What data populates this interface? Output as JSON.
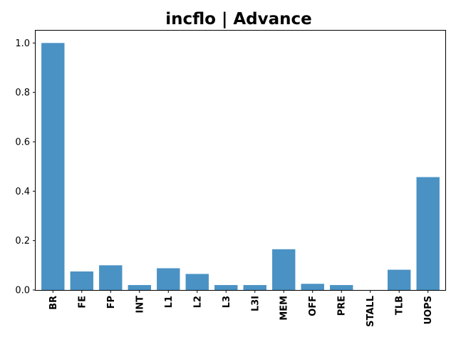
{
  "chart_data": {
    "type": "bar",
    "title": "incflo | Advance",
    "xlabel": "",
    "ylabel": "",
    "categories": [
      "BR",
      "FE",
      "FP",
      "INT",
      "L1",
      "L2",
      "L3",
      "L3I",
      "MEM",
      "OFF",
      "PRE",
      "STALL",
      "TLB",
      "UOPS"
    ],
    "values": [
      1.0,
      0.075,
      0.1,
      0.02,
      0.088,
      0.065,
      0.02,
      0.02,
      0.165,
      0.025,
      0.02,
      0.0,
      0.082,
      0.457
    ],
    "ylim": [
      0,
      1.05
    ],
    "yticks": [
      0.0,
      0.2,
      0.4,
      0.6,
      0.8,
      1.0
    ],
    "ytick_labels": [
      "0.0",
      "0.2",
      "0.4",
      "0.6",
      "0.8",
      "1.0"
    ],
    "bar_color": "#4a92c4",
    "grid": false,
    "legend": "none"
  }
}
